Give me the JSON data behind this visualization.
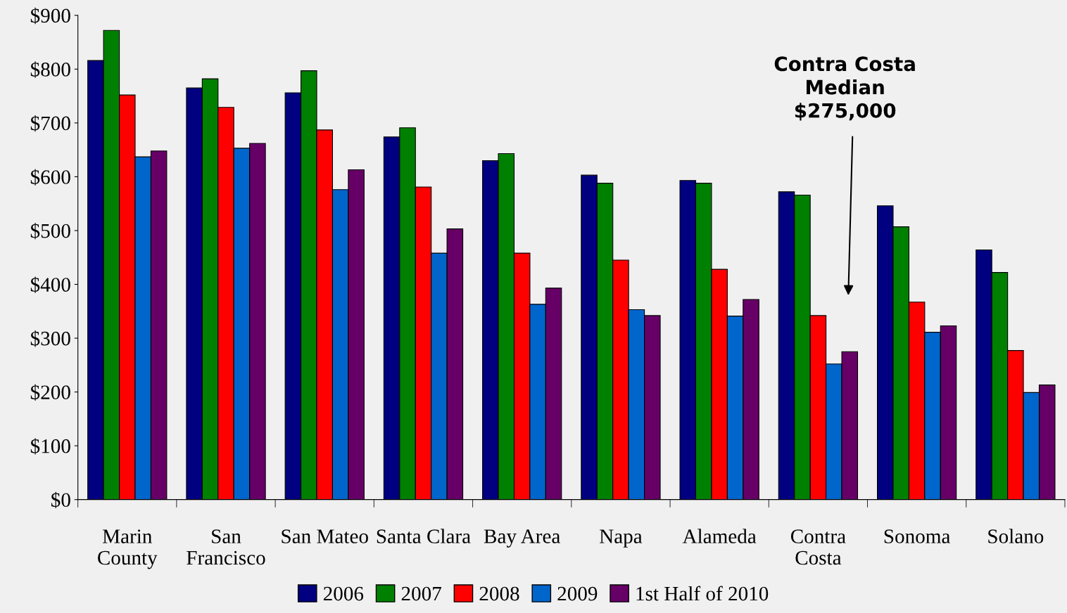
{
  "chart_data": {
    "type": "bar",
    "categories": [
      "Marin\nCounty",
      "San\nFrancisco",
      "San Mateo",
      "Santa Clara",
      "Bay Area",
      "Napa",
      "Alameda",
      "Contra\nCosta",
      "Sonoma",
      "Solano"
    ],
    "series": [
      {
        "name": "2006",
        "color": "#000080",
        "values": [
          816,
          765,
          756,
          674,
          630,
          603,
          593,
          572,
          546,
          464
        ]
      },
      {
        "name": "2007",
        "color": "#008000",
        "values": [
          872,
          782,
          797,
          691,
          643,
          588,
          588,
          566,
          507,
          422
        ]
      },
      {
        "name": "2008",
        "color": "#ff0000",
        "values": [
          752,
          729,
          687,
          581,
          458,
          445,
          428,
          342,
          367,
          277
        ]
      },
      {
        "name": "2009",
        "color": "#0066cc",
        "values": [
          637,
          653,
          576,
          458,
          363,
          353,
          341,
          252,
          311,
          199
        ]
      },
      {
        "name": "1st Half of 2010",
        "color": "#660066",
        "values": [
          648,
          662,
          613,
          503,
          393,
          342,
          372,
          275,
          323,
          213
        ]
      }
    ],
    "ylim": [
      0,
      900
    ],
    "yticks": [
      {
        "value": 0,
        "label": "$0"
      },
      {
        "value": 100,
        "label": "$100"
      },
      {
        "value": 200,
        "label": "$200"
      },
      {
        "value": 300,
        "label": "$300"
      },
      {
        "value": 400,
        "label": "$400"
      },
      {
        "value": 500,
        "label": "$500"
      },
      {
        "value": 600,
        "label": "$600"
      },
      {
        "value": 700,
        "label": "$700"
      },
      {
        "value": 800,
        "label": "$800"
      },
      {
        "value": 900,
        "label": "$900"
      }
    ],
    "annotations": [
      "Contra Costa\nMedian\n$275,000"
    ],
    "grid": false,
    "legend": "bottom"
  }
}
